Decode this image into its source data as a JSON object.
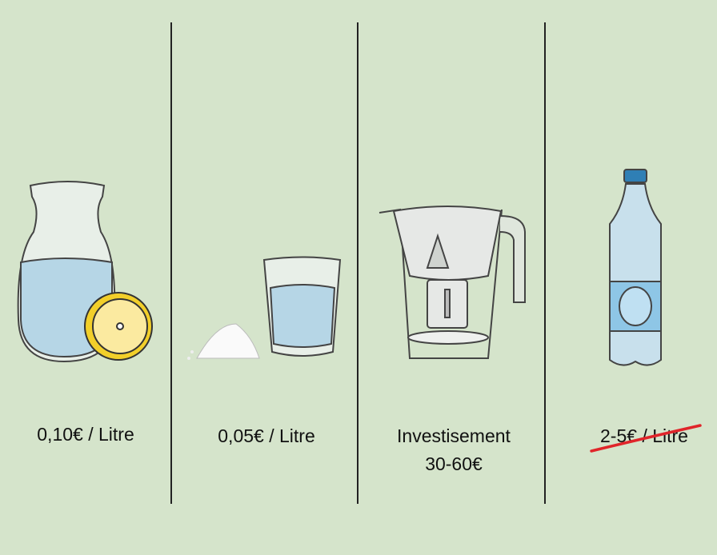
{
  "panels": [
    {
      "item": "carafe-with-lemon",
      "price": "0,10€ / Litre"
    },
    {
      "item": "glass-with-salt",
      "price": "0,05€ / Litre"
    },
    {
      "item": "filter-pitcher",
      "line1": "Investisement",
      "line2": "30-60€"
    },
    {
      "item": "plastic-bottle",
      "price": "2-5€ / Litre",
      "struck_through": true
    }
  ],
  "colors": {
    "background": "#d5e4cb",
    "water": "#b6d6e6",
    "lemon": "#f2cf2a",
    "strike": "#e0252a",
    "bottle_cap": "#2f7fb5",
    "bottle_label": "#8ec6e6"
  }
}
